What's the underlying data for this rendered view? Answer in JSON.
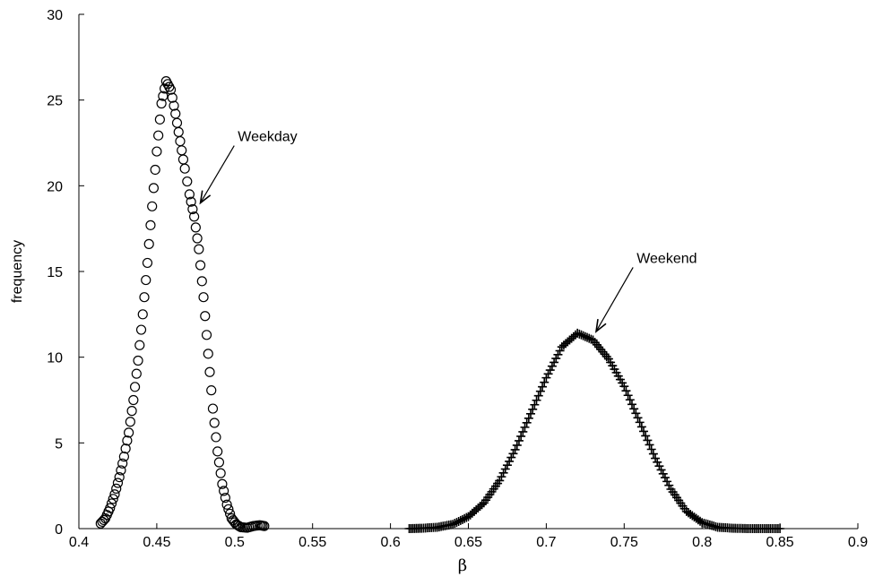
{
  "chart_data": {
    "type": "scatter",
    "xlabel": "β",
    "ylabel": "frequency",
    "xlim": [
      0.4,
      0.9
    ],
    "ylim": [
      0,
      30
    ],
    "xticks": [
      "0.4",
      "0.45",
      "0.5",
      "0.55",
      "0.6",
      "0.65",
      "0.7",
      "0.75",
      "0.8",
      "0.85",
      "0.9"
    ],
    "yticks": [
      "0",
      "5",
      "10",
      "15",
      "20",
      "25",
      "30"
    ],
    "grid": false,
    "series": [
      {
        "marker": "circle",
        "color": "#000000",
        "points": [
          [
            0.414,
            0.3
          ],
          [
            0.417,
            0.6
          ],
          [
            0.42,
            1.2
          ],
          [
            0.423,
            2.0
          ],
          [
            0.426,
            3.0
          ],
          [
            0.429,
            4.2
          ],
          [
            0.432,
            5.6
          ],
          [
            0.435,
            7.5
          ],
          [
            0.438,
            9.8
          ],
          [
            0.441,
            12.5
          ],
          [
            0.444,
            15.5
          ],
          [
            0.447,
            18.8
          ],
          [
            0.45,
            22.0
          ],
          [
            0.453,
            24.8
          ],
          [
            0.456,
            26.1
          ],
          [
            0.459,
            25.6
          ],
          [
            0.462,
            24.2
          ],
          [
            0.465,
            22.6
          ],
          [
            0.468,
            21.0
          ],
          [
            0.471,
            19.5
          ],
          [
            0.474,
            18.2
          ],
          [
            0.477,
            16.3
          ],
          [
            0.48,
            13.5
          ],
          [
            0.483,
            10.2
          ],
          [
            0.486,
            7.0
          ],
          [
            0.489,
            4.5
          ],
          [
            0.492,
            2.6
          ],
          [
            0.495,
            1.4
          ],
          [
            0.498,
            0.6
          ],
          [
            0.501,
            0.25
          ],
          [
            0.504,
            0.08
          ],
          [
            0.508,
            0.05
          ],
          [
            0.512,
            0.15
          ],
          [
            0.516,
            0.2
          ],
          [
            0.519,
            0.15
          ]
        ]
      },
      {
        "marker": "cross",
        "color": "#000000",
        "points": [
          [
            0.612,
            0.0
          ],
          [
            0.62,
            0.02
          ],
          [
            0.63,
            0.08
          ],
          [
            0.64,
            0.25
          ],
          [
            0.65,
            0.7
          ],
          [
            0.66,
            1.5
          ],
          [
            0.67,
            2.8
          ],
          [
            0.68,
            4.6
          ],
          [
            0.69,
            6.7
          ],
          [
            0.7,
            8.8
          ],
          [
            0.71,
            10.6
          ],
          [
            0.72,
            11.4
          ],
          [
            0.73,
            11.0
          ],
          [
            0.74,
            9.9
          ],
          [
            0.75,
            8.3
          ],
          [
            0.76,
            6.2
          ],
          [
            0.77,
            4.1
          ],
          [
            0.78,
            2.3
          ],
          [
            0.79,
            1.0
          ],
          [
            0.8,
            0.35
          ],
          [
            0.81,
            0.08
          ],
          [
            0.82,
            0.02
          ],
          [
            0.83,
            0.0
          ],
          [
            0.84,
            0.0
          ],
          [
            0.85,
            0.0
          ]
        ]
      }
    ],
    "annotations": [
      {
        "text": "Weekday",
        "arrow_to": [
          0.478,
          19.0
        ],
        "text_at": [
          0.502,
          22.6
        ]
      },
      {
        "text": "Weekend",
        "arrow_to": [
          0.732,
          11.5
        ],
        "text_at": [
          0.758,
          15.5
        ]
      }
    ]
  }
}
